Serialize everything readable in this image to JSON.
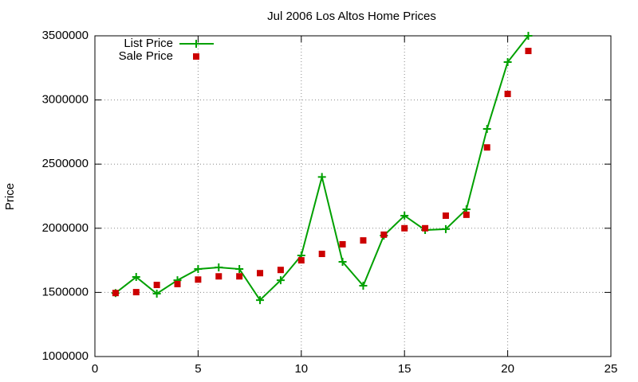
{
  "chart_data": {
    "type": "line",
    "title": "Jul 2006 Los Altos Home Prices",
    "y_label": "Price",
    "x": [
      1,
      2,
      3,
      4,
      5,
      6,
      7,
      8,
      9,
      10,
      11,
      12,
      13,
      14,
      15,
      16,
      17,
      18,
      19,
      20,
      21
    ],
    "series": [
      {
        "name": "List Price",
        "color": "#00a000",
        "style": "linespoints",
        "values": [
          1495000,
          1620000,
          1490000,
          1595000,
          1682000,
          1695000,
          1682000,
          1440000,
          1595000,
          1788000,
          2400000,
          1738000,
          1552000,
          1943000,
          2098000,
          1986000,
          1993000,
          2148000,
          2774000,
          3295000,
          3500000
        ]
      },
      {
        "name": "Sale Price",
        "color": "#cc0000",
        "style": "points",
        "values": [
          1495000,
          1502000,
          1558000,
          1565000,
          1600000,
          1625000,
          1625000,
          1650000,
          1675000,
          1750000,
          1800000,
          1875000,
          1905000,
          1950000,
          2000000,
          2000000,
          2098000,
          2105000,
          2630000,
          3047000,
          3382000
        ]
      }
    ],
    "xlim": [
      0,
      25
    ],
    "xticks": [
      0,
      5,
      10,
      15,
      20,
      25
    ],
    "ylim": [
      1000000,
      3500000
    ],
    "yticks": [
      1000000,
      1500000,
      2000000,
      2500000,
      3000000,
      3500000
    ],
    "grid": true,
    "legend": "top-left"
  }
}
